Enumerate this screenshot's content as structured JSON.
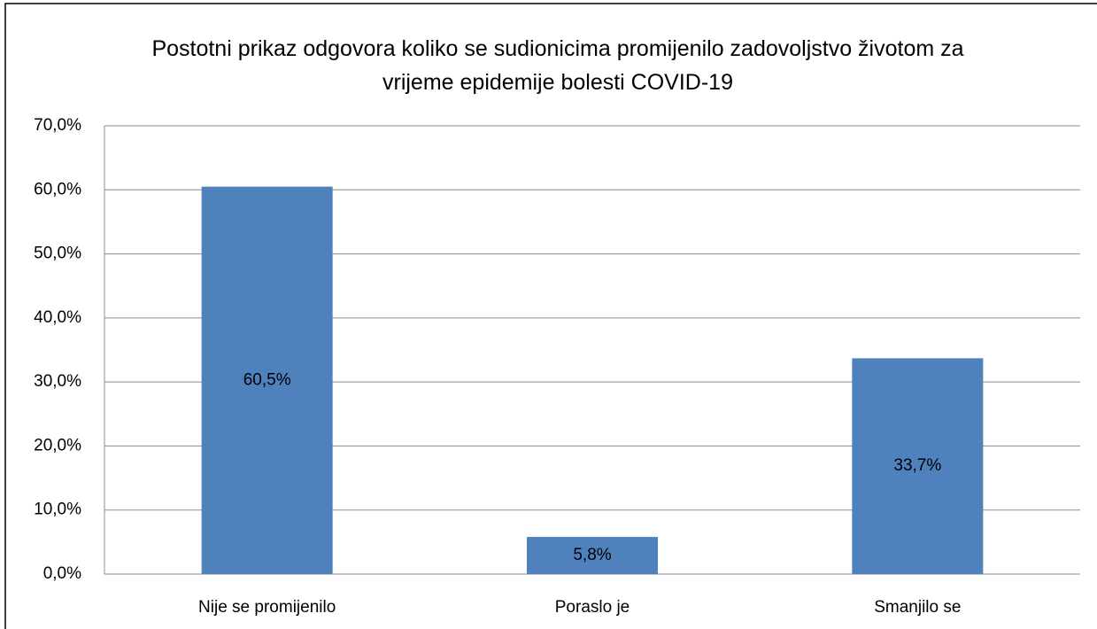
{
  "chart_data": {
    "type": "bar",
    "title": "Postotni prikaz odgovora koliko se sudionicima promijenilo zadovoljstvo životom za vrijeme epidemije bolesti COVID-19",
    "categories": [
      "Nije se promijenilo",
      "Poraslo je",
      "Smanjilo se"
    ],
    "values": [
      60.5,
      5.8,
      33.7
    ],
    "value_labels": [
      "60,5%",
      "5,8%",
      "33,7%"
    ],
    "color": "#4f81bd",
    "ylim": [
      0,
      70
    ],
    "yticks": [
      {
        "value": 0,
        "label": "0,0%"
      },
      {
        "value": 10,
        "label": "10,0%"
      },
      {
        "value": 20,
        "label": "20,0%"
      },
      {
        "value": 30,
        "label": "30,0%"
      },
      {
        "value": 40,
        "label": "40,0%"
      },
      {
        "value": 50,
        "label": "50,0%"
      },
      {
        "value": 60,
        "label": "60,0%"
      },
      {
        "value": 70,
        "label": "70,0%"
      }
    ],
    "grid": true
  }
}
